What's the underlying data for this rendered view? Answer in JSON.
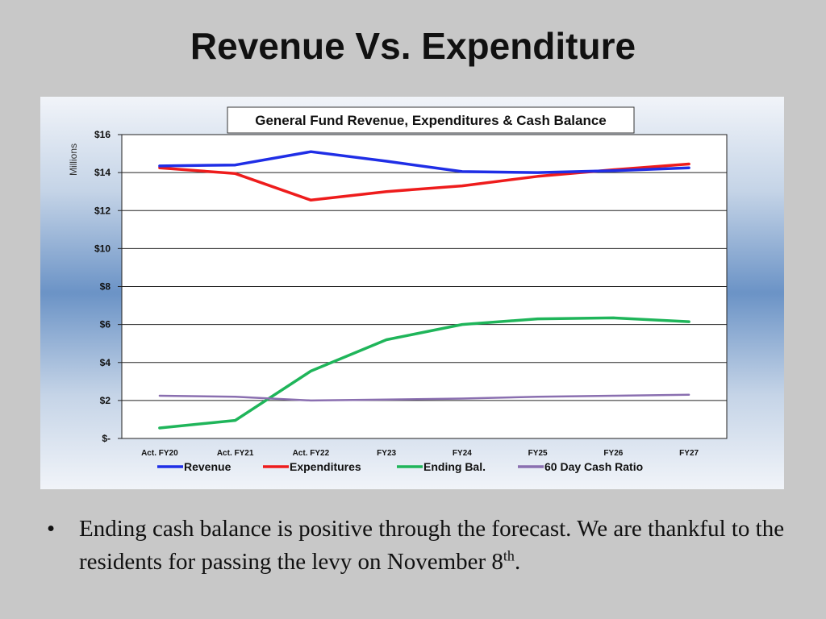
{
  "slide": {
    "title": "Revenue Vs. Expenditure",
    "bullet": {
      "marker": "•",
      "text": "Ending cash balance is positive through the forecast. We are thankful to the residents for passing the levy on November 8",
      "superscript": "th",
      "end": "."
    }
  },
  "chart_data": {
    "type": "line",
    "title": "General Fund Revenue, Expenditures & Cash Balance",
    "ylabel": "Millions",
    "ylim": [
      0,
      16
    ],
    "yticks": [
      {
        "value": 0,
        "label": "$-"
      },
      {
        "value": 2,
        "label": "$2"
      },
      {
        "value": 4,
        "label": "$4"
      },
      {
        "value": 6,
        "label": "$6"
      },
      {
        "value": 8,
        "label": "$8"
      },
      {
        "value": 10,
        "label": "$10"
      },
      {
        "value": 12,
        "label": "$12"
      },
      {
        "value": 14,
        "label": "$14"
      },
      {
        "value": 16,
        "label": "$16"
      }
    ],
    "categories": [
      "Act. FY20",
      "Act. FY21",
      "Act.  FY22",
      "FY23",
      "FY24",
      "FY25",
      "FY26",
      "FY27"
    ],
    "grid": true,
    "legend": "bottom",
    "series": [
      {
        "name": "Revenue",
        "color": "#1f2ee6",
        "values": [
          14.35,
          14.4,
          15.1,
          14.6,
          14.05,
          14.0,
          14.1,
          14.25
        ]
      },
      {
        "name": "Expenditures",
        "color": "#ee1c1c",
        "values": [
          14.25,
          13.95,
          12.55,
          13.0,
          13.3,
          13.8,
          14.15,
          14.45
        ]
      },
      {
        "name": "Ending Bal.",
        "color": "#1fb55a",
        "values": [
          0.55,
          0.95,
          3.55,
          5.2,
          6.0,
          6.3,
          6.35,
          6.15
        ]
      },
      {
        "name": "60 Day Cash Ratio",
        "color": "#8a6fb0",
        "values": [
          2.25,
          2.2,
          2.0,
          2.05,
          2.1,
          2.2,
          2.25,
          2.3
        ]
      }
    ]
  }
}
